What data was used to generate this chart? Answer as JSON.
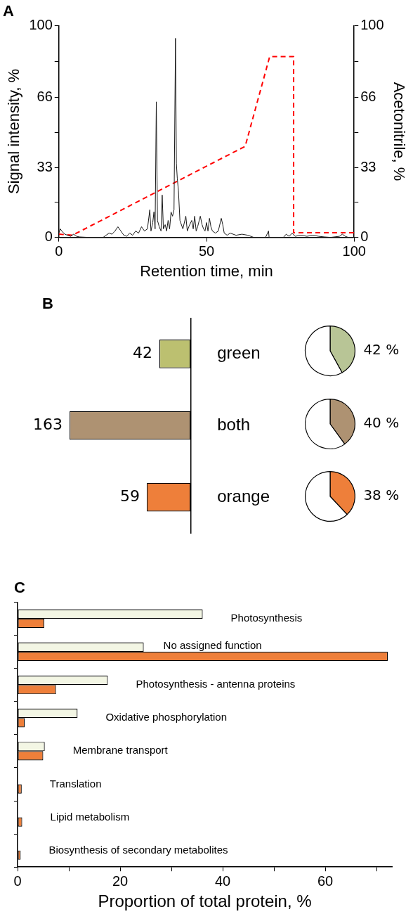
{
  "chart_data": [
    {
      "type": "line",
      "title": "A",
      "xlabel": "Retention time, min",
      "ylabel": "Signal intensity, %",
      "y2label": "Acetonitrile, %",
      "xlim": [
        0,
        100
      ],
      "xticks": [
        0,
        50,
        100
      ],
      "ylim": [
        0,
        100
      ],
      "yticks": [
        0,
        {
          "value": 16.5,
          "label": null
        },
        33,
        {
          "value": 49.5,
          "label": null
        },
        66,
        {
          "value": 83,
          "label": null
        },
        100
      ],
      "y2lim": [
        0,
        100
      ],
      "y2ticks": [
        0,
        {
          "value": 16.5,
          "label": null
        },
        33,
        {
          "value": 49.5,
          "label": null
        },
        66,
        {
          "value": 83,
          "label": null
        },
        100
      ],
      "marker": "none",
      "series": [
        {
          "color": "#1a1a1a",
          "line_style": "solid",
          "x": [
            0,
            0.5,
            1,
            2,
            3,
            4,
            5,
            6,
            7,
            10,
            15,
            16,
            17,
            18,
            19,
            20,
            21,
            22,
            23,
            24,
            25,
            26,
            27,
            28,
            29,
            30,
            30.8,
            31.2,
            31.8,
            32.2,
            32.6,
            33,
            33.4,
            34,
            34.6,
            35,
            35.4,
            36,
            36.5,
            37,
            37.5,
            38,
            38.5,
            39,
            39.5,
            39.8,
            40.1,
            40.5,
            41,
            42,
            43,
            43.5,
            44,
            45,
            45.5,
            46,
            46.5,
            47,
            47.9,
            48.5,
            49,
            49.5,
            50,
            50.5,
            51,
            51.5,
            52,
            53,
            54,
            55,
            55.5,
            56,
            57,
            58,
            60,
            62,
            64,
            65,
            66,
            70,
            71,
            71.2,
            76,
            77,
            78,
            79,
            80,
            82,
            84,
            86,
            88,
            90,
            92,
            95,
            96,
            97,
            98,
            100
          ],
          "values": [
            2,
            4,
            3,
            1.5,
            1,
            0.5,
            1.5,
            0.5,
            0.2,
            0,
            0,
            1,
            2,
            1.5,
            3,
            5,
            3,
            1,
            0.5,
            2,
            1,
            3,
            2,
            5,
            3,
            4,
            13,
            3,
            7,
            12,
            4,
            64,
            8,
            5,
            3,
            20,
            4,
            6,
            3,
            8,
            4,
            12,
            10,
            13,
            94,
            35,
            28,
            22,
            8,
            4,
            10,
            3,
            5,
            8,
            4,
            10,
            3,
            5,
            10,
            6,
            4,
            3,
            7,
            3,
            9,
            5,
            3,
            2,
            3,
            9,
            6,
            2,
            1,
            2,
            1,
            1.5,
            1,
            0.5,
            0,
            0,
            3,
            0,
            0,
            1.5,
            0.5,
            2,
            0.5,
            1,
            0.5,
            1,
            0.5,
            0.2,
            0,
            0.5,
            1.5,
            0.5,
            0,
            0
          ]
        },
        {
          "color": "#ff0000",
          "axis": "y2",
          "line_style": "dashed",
          "x": [
            0,
            4.6,
            63.1,
            71.4,
            79.5,
            79.5,
            100
          ],
          "values": [
            1.5,
            1,
            43,
            85.4,
            85.4,
            2.2,
            2.2
          ]
        }
      ]
    },
    {
      "type": "bar",
      "title": "B",
      "orientation": "horizontal",
      "categories": [
        "green",
        "both",
        "orange"
      ],
      "values": [
        42,
        163,
        59
      ],
      "colors": [
        "#bcc070",
        "#ae9272",
        "#ee7f3a"
      ],
      "data_labels": true,
      "tick_labels": "y"
    },
    {
      "type": "pie",
      "categories": [
        null,
        null
      ],
      "values": [
        42,
        58
      ],
      "colors": [
        "#b8c596",
        "#ffffff"
      ],
      "value_labels": [
        "42 %",
        null
      ]
    },
    {
      "type": "pie",
      "categories": [
        null,
        null
      ],
      "values": [
        40,
        60
      ],
      "colors": [
        "#ae9272",
        "#ffffff"
      ],
      "value_labels": [
        "40 %",
        null
      ]
    },
    {
      "type": "pie",
      "categories": [
        null,
        null
      ],
      "values": [
        38,
        62
      ],
      "colors": [
        "#ee7f3a",
        "#ffffff"
      ],
      "value_labels": [
        "38 %",
        null
      ]
    },
    {
      "type": "bar",
      "title": "C",
      "orientation": "horizontal",
      "xlabel": "Proportion of total protein, %",
      "categories": [
        "Photosynthesis",
        "No assigned function",
        "Photosynthesis - antenna proteins",
        "Oxidative phosphorylation",
        "Membrane transport",
        "Translation",
        "Lipid metabolism",
        "Biosynthesis of secondary metabolites"
      ],
      "xlim": [
        0,
        73
      ],
      "xticks": [
        0,
        {
          "value": 10,
          "label": null
        },
        20,
        {
          "value": 30,
          "label": null
        },
        40,
        {
          "value": 50,
          "label": null
        },
        60,
        {
          "value": 70,
          "label": null
        }
      ],
      "series": [
        {
          "color": "#f3f6e4",
          "values": [
            36.1,
            24.6,
            17.6,
            11.7,
            5.3,
            0,
            0,
            0
          ]
        },
        {
          "color": "#ee7f3a",
          "values": [
            5.2,
            72.2,
            7.5,
            1.4,
            5.0,
            0.8,
            0.9,
            0.6
          ]
        }
      ]
    }
  ]
}
